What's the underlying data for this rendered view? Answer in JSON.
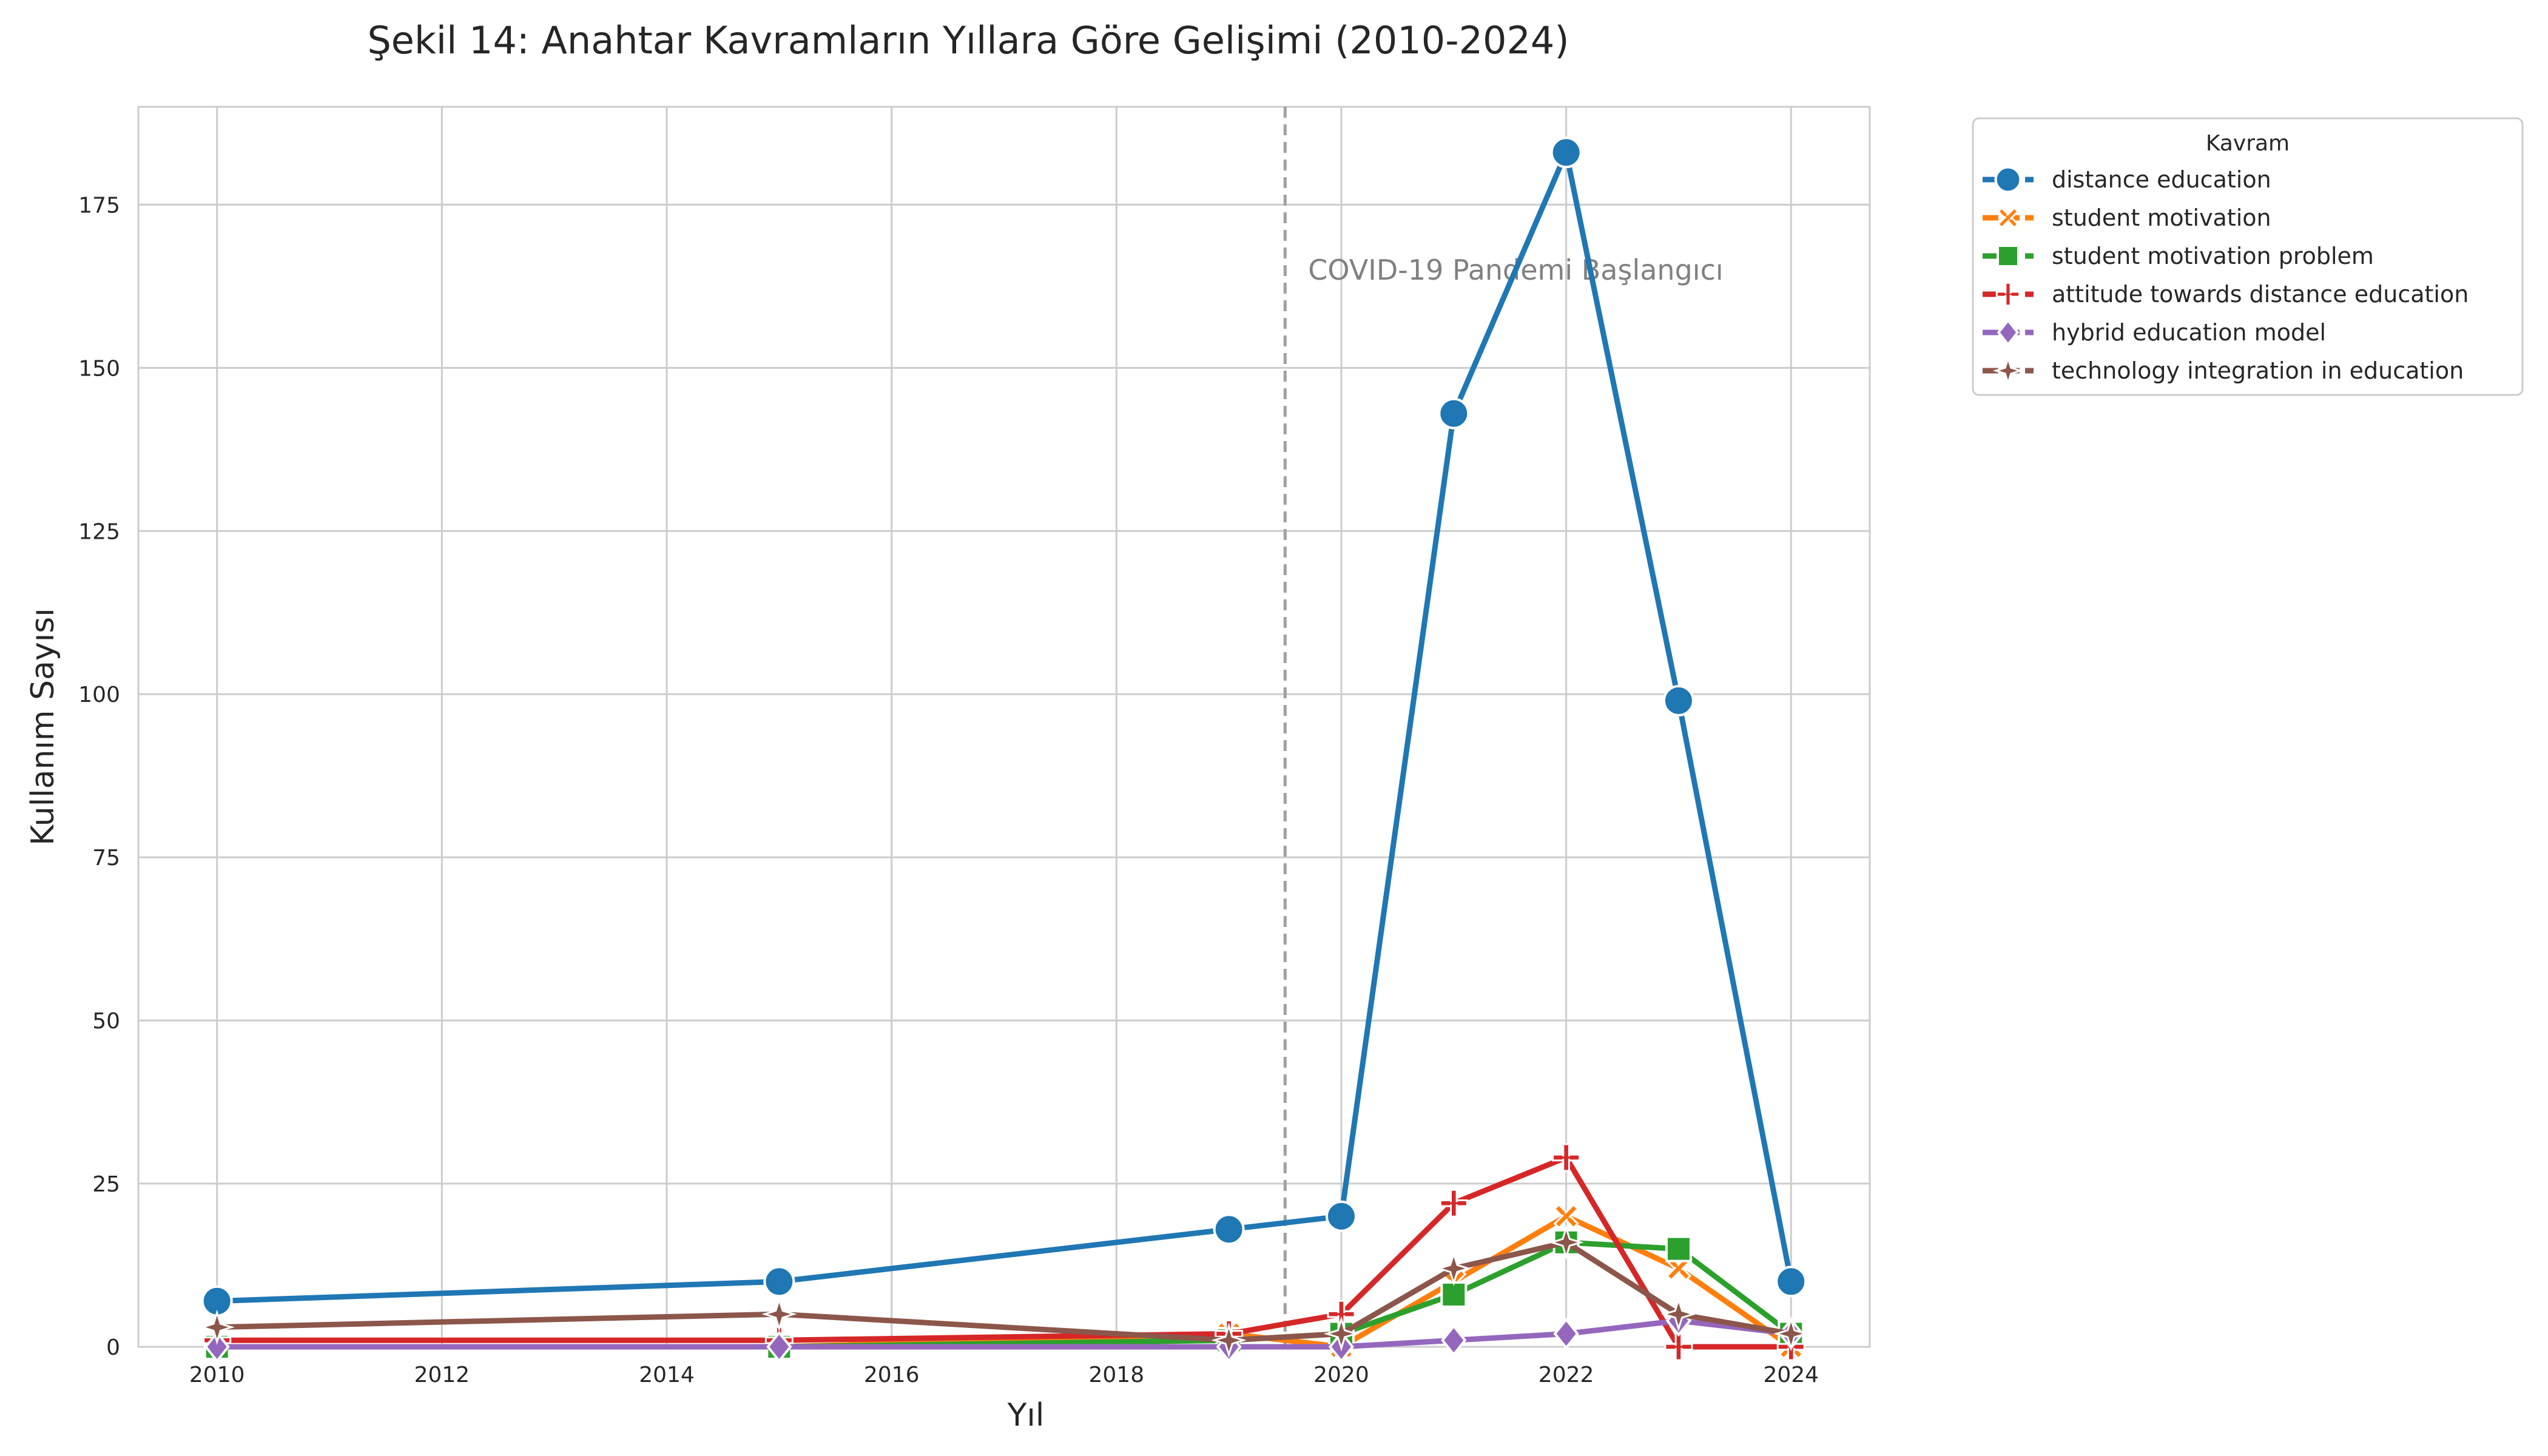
{
  "chart_data": {
    "type": "line",
    "title": "Şekil 14: Anahtar Kavramların Yıllara Göre Gelişimi (2010-2024)",
    "xlabel": "Yıl",
    "ylabel": "Kullanım Sayısı",
    "xlim": [
      2009.3,
      2024.7
    ],
    "ylim": [
      0,
      190
    ],
    "xticks": [
      2010,
      2012,
      2014,
      2016,
      2018,
      2020,
      2022,
      2024
    ],
    "yticks": [
      0,
      25,
      50,
      75,
      100,
      125,
      150,
      175
    ],
    "grid": true,
    "legend": {
      "title": "Kavram",
      "placement": "outside-top-right"
    },
    "annotation": {
      "text": "COVID-19 Pandemi Başlangıcı",
      "x": 2019.5,
      "line_color": "#a0a0a0"
    },
    "x": [
      2010,
      2015,
      2019,
      2020,
      2021,
      2022,
      2023,
      2024
    ],
    "series": [
      {
        "name": "distance education",
        "color": "#1f77b4",
        "marker": "circle",
        "values": [
          7,
          10,
          18,
          20,
          143,
          183,
          99,
          10
        ]
      },
      {
        "name": "student motivation",
        "color": "#ff7f0e",
        "marker": "x",
        "values": [
          0,
          0,
          2,
          0,
          10,
          20,
          12,
          0
        ]
      },
      {
        "name": "student motivation problem",
        "color": "#2ca02c",
        "marker": "square",
        "values": [
          0,
          0,
          1,
          2,
          8,
          16,
          15,
          2
        ]
      },
      {
        "name": "attitude towards distance education",
        "color": "#d62728",
        "marker": "plus",
        "values": [
          1,
          1,
          2,
          5,
          22,
          29,
          0,
          0
        ]
      },
      {
        "name": "hybrid education model",
        "color": "#9467bd",
        "marker": "diamond",
        "values": [
          0,
          0,
          0,
          0,
          1,
          2,
          4,
          2
        ]
      },
      {
        "name": "technology integration in education",
        "color": "#8c564b",
        "marker": "star4",
        "values": [
          3,
          5,
          1,
          2,
          12,
          16,
          5,
          2
        ]
      }
    ]
  }
}
